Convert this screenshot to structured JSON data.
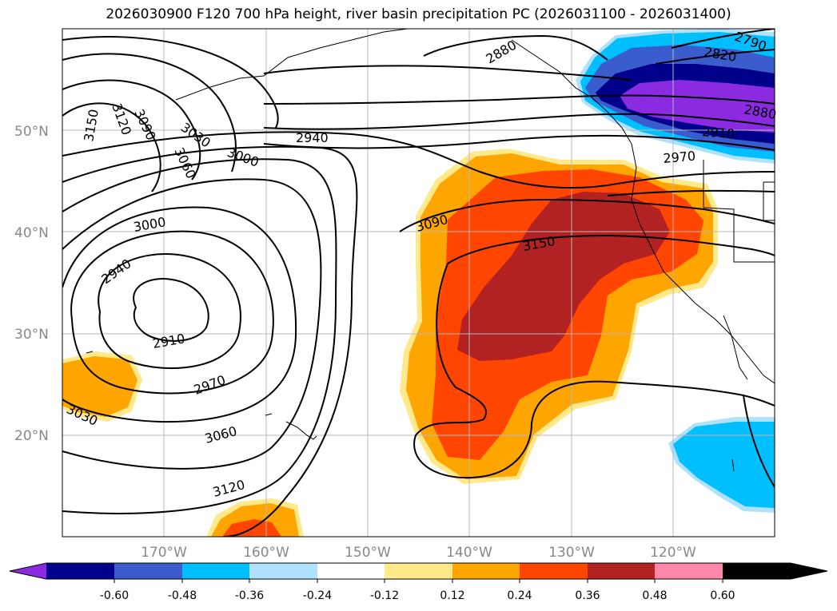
{
  "title": "2026030900 F120 700 hPa height, river basin precipitation PC (2026031100 - 2026031400)",
  "map": {
    "projection": "lat-lon",
    "lat_labels": [
      "50°N",
      "40°N",
      "30°N",
      "20°N"
    ],
    "lon_labels": [
      "170°W",
      "160°W",
      "150°W",
      "140°W",
      "130°W",
      "120°W"
    ],
    "gridlines": true,
    "coastlines": true
  },
  "contours": {
    "variable": "700 hPa height",
    "labels": [
      "3150",
      "3120",
      "3090",
      "3030",
      "3060",
      "3000",
      "2940",
      "2910",
      "2970",
      "3030",
      "3060",
      "3120",
      "2940",
      "3000",
      "3090",
      "3150",
      "2880",
      "2820",
      "2790",
      "2880",
      "2910",
      "2970"
    ]
  },
  "colorbar": {
    "extend": "both",
    "ticks": [
      "-0.60",
      "-0.48",
      "-0.36",
      "-0.24",
      "-0.12",
      "0.12",
      "0.24",
      "0.36",
      "0.48",
      "0.60"
    ],
    "colors": [
      "#8a2be2",
      "#00008b",
      "#3a5ccc",
      "#00bfff",
      "#b0e2ff",
      "#ffffff",
      "#ffe98a",
      "#ffa500",
      "#ff4500",
      "#b22222",
      "#ff88aa"
    ]
  }
}
